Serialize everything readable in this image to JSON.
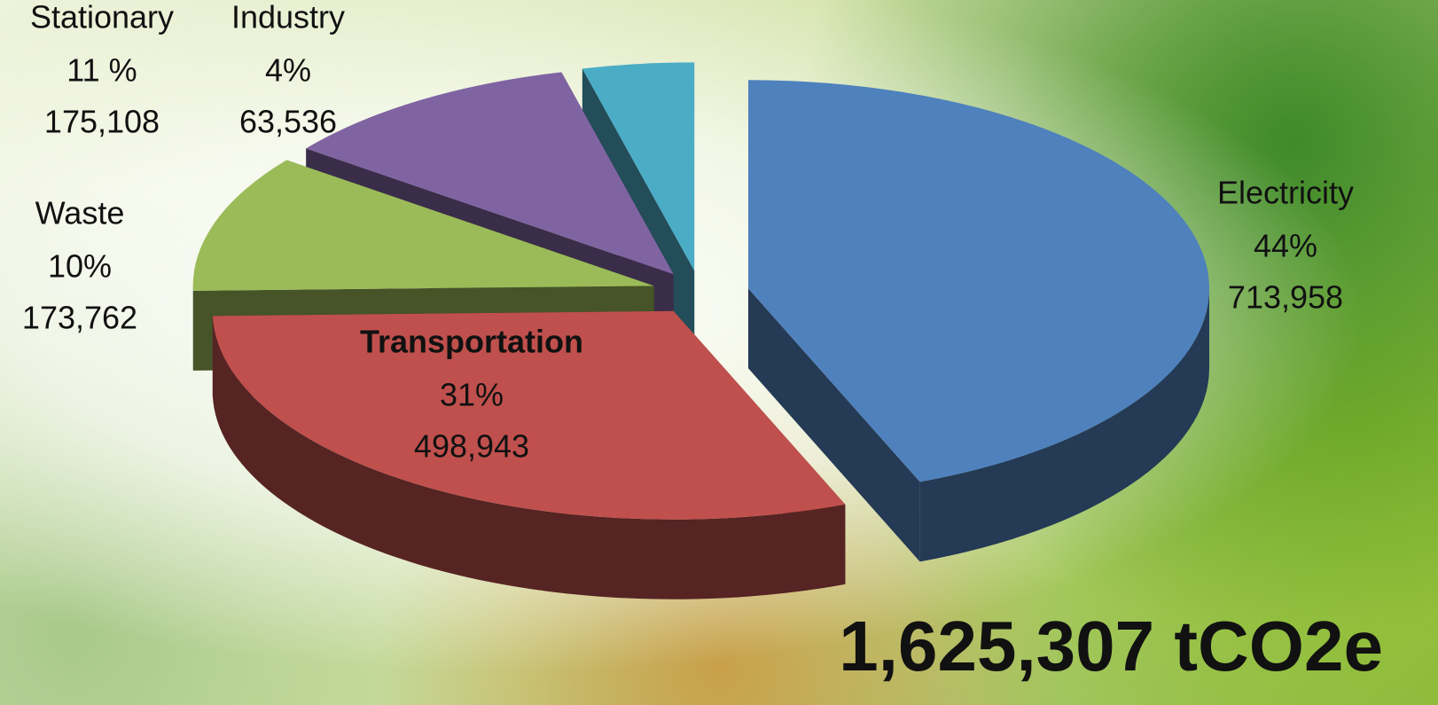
{
  "chart_data": {
    "type": "pie",
    "categories": [
      "Electricity",
      "Transportation",
      "Waste",
      "Stationary",
      "Industry"
    ],
    "values": [
      713958,
      498943,
      173762,
      175108,
      63536
    ],
    "value_labels": [
      "713,958",
      "498,943",
      "173,762",
      "175,108",
      "63,536"
    ],
    "percents": [
      44,
      31,
      10,
      11,
      4
    ],
    "percent_labels": [
      "44%",
      "31%",
      "10%",
      "11 %",
      "4%"
    ],
    "colors": [
      "#4f81bd",
      "#c0504d",
      "#9bbb59",
      "#8064a2",
      "#4bacc6"
    ],
    "total_label": "1,625,307 tCO2e"
  }
}
